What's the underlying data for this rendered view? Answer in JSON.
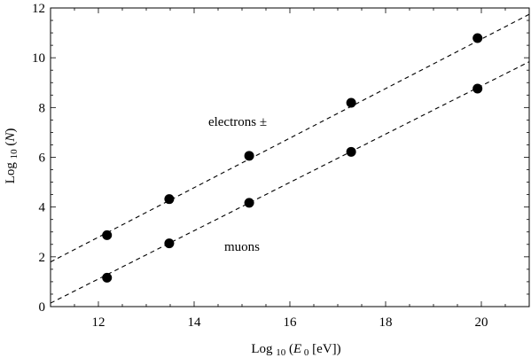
{
  "chart_data": {
    "type": "scatter",
    "xlabel": "Log 10 (E 0 [eV])",
    "ylabel": "Log 10 (N)",
    "xlim": [
      11,
      21
    ],
    "ylim": [
      0,
      12
    ],
    "x_ticks": [
      "12",
      "14",
      "16",
      "18",
      "20"
    ],
    "y_ticks": [
      "0",
      "2",
      "4",
      "6",
      "8",
      "10",
      "12"
    ],
    "grid": false,
    "series": [
      {
        "name": "electrons ±",
        "x": [
          12.18,
          13.48,
          15.15,
          17.28,
          19.92
        ],
        "y": [
          2.87,
          4.32,
          6.06,
          8.19,
          10.79
        ],
        "fit_line": {
          "slope": 0.995,
          "intercept": -9.15,
          "style": "dashed"
        }
      },
      {
        "name": "muons",
        "x": [
          12.18,
          13.48,
          15.15,
          17.28,
          19.92
        ],
        "y": [
          1.16,
          2.54,
          4.17,
          6.22,
          8.76
        ],
        "fit_line": {
          "slope": 0.97,
          "intercept": -10.53,
          "style": "dashed"
        }
      }
    ],
    "annotations": [
      "electrons ±",
      "muons"
    ]
  }
}
